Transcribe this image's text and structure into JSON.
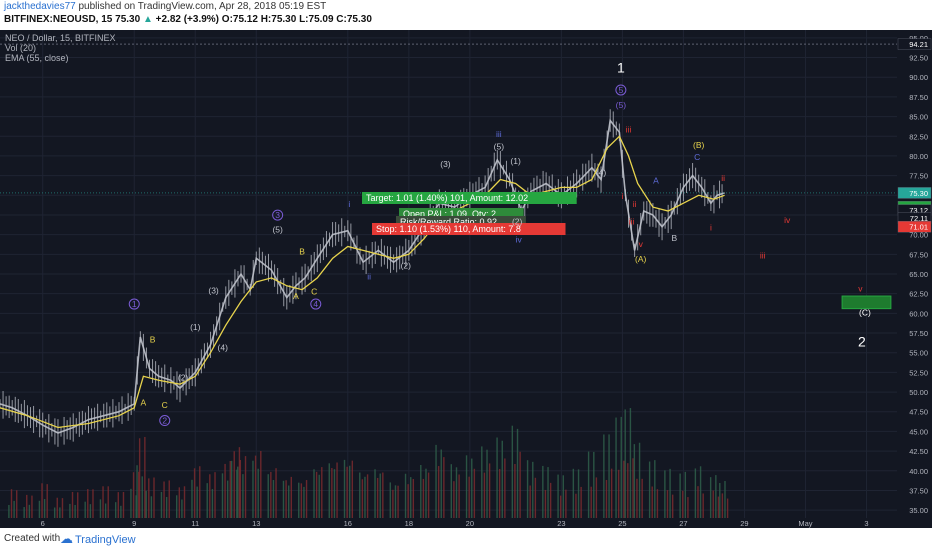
{
  "header": {
    "author": "jackthedavies77",
    "published": "published on TradingView.com, Apr 28, 2018 05:19 EST",
    "symbol": "BITFINEX:NEOUSD, 15",
    "last": "75.30",
    "change": "+2.82 (+3.9%)",
    "ohlc": "O:75.12 H:75.30 L:75.09 C:75.30"
  },
  "legend": {
    "title": "NEO / Dollar, 15, BITFINEX",
    "vol": "Vol (20)",
    "ema": "EMA (55, close)"
  },
  "footer": {
    "created_with": "Created with",
    "brand": "TradingView"
  },
  "colors": {
    "background": "#131722",
    "candles": "#c0c3cc",
    "ema": "#e8d44d",
    "volume": "#7a2a2e",
    "target_green": "#26a641",
    "stop_red": "#e53935",
    "wave_purple": "#7b5cd6",
    "wave_yellow": "#e8d44d",
    "wave_red": "#e53935",
    "wave_blue": "#5e6bd8"
  },
  "chart_data": {
    "type": "line",
    "title": "NEO / Dollar, 15, BITFINEX",
    "x_ticks": [
      "6",
      "9",
      "11",
      "13",
      "16",
      "18",
      "20",
      "23",
      "25",
      "27",
      "29",
      "May",
      "3"
    ],
    "y_ticks": [
      35.0,
      37.5,
      40.0,
      42.5,
      45.0,
      47.5,
      50.0,
      52.5,
      55.0,
      57.5,
      60.0,
      62.5,
      65.0,
      67.5,
      70.0,
      72.5,
      75.0,
      77.5,
      80.0,
      82.5,
      85.0,
      87.5,
      90.0,
      92.5,
      95.0
    ],
    "ylim": [
      34,
      96
    ],
    "xlim": [
      4.6,
      34
    ],
    "price_labels": [
      {
        "value": 94.21,
        "text": "94.21",
        "color": "#ffffff",
        "bg": "#131722",
        "text_color": "#ffffff"
      },
      {
        "value": 75.3,
        "text": "75.30",
        "color": "#26a69a",
        "bg": "#26a69a",
        "text_color": "#ffffff"
      },
      {
        "value": 73.55,
        "text": "10:49",
        "color": "#26a641",
        "bg": "#26a641",
        "text_color": "#ffffff"
      },
      {
        "value": 73.12,
        "text": "73.12",
        "color": "#131722",
        "bg": "#131722",
        "text_color": "#ffffff"
      },
      {
        "value": 72.11,
        "text": "72.11",
        "color": "#131722",
        "bg": "#131722",
        "text_color": "#ffffff"
      },
      {
        "value": 71.01,
        "text": "71.01",
        "color": "#e53935",
        "bg": "#e53935",
        "text_color": "#ffffff"
      }
    ],
    "series": [
      {
        "name": "NEO / Dollar",
        "x": [
          4.6,
          5.0,
          5.5,
          6.0,
          6.5,
          7.0,
          7.5,
          8.0,
          8.5,
          9.0,
          9.2,
          9.5,
          9.8,
          10.2,
          10.5,
          11.0,
          11.5,
          12.0,
          12.5,
          12.8,
          13.0,
          13.5,
          14.0,
          14.3,
          14.6,
          15.0,
          15.5,
          16.0,
          16.5,
          17.0,
          17.5,
          18.0,
          18.5,
          19.0,
          19.5,
          20.0,
          20.5,
          20.9,
          21.3,
          21.7,
          22.0,
          22.5,
          23.0,
          23.5,
          24.0,
          24.3,
          24.6,
          24.9,
          25.1,
          25.4,
          25.7,
          26.0,
          26.3,
          26.6,
          27.0,
          27.3,
          27.6,
          27.9,
          28.1,
          28.35
        ],
        "values": [
          48.5,
          48.0,
          47.0,
          45.8,
          44.8,
          45.5,
          46.5,
          47.0,
          47.5,
          48.5,
          57.0,
          53.0,
          52.0,
          51.5,
          50.5,
          52.5,
          56.0,
          62.0,
          65.0,
          63.0,
          67.0,
          65.5,
          62.0,
          63.5,
          64.5,
          67.0,
          70.0,
          70.5,
          66.5,
          68.0,
          66.5,
          68.0,
          71.0,
          74.0,
          73.5,
          75.0,
          76.0,
          79.5,
          77.0,
          73.0,
          75.5,
          76.5,
          75.0,
          76.5,
          78.5,
          77.0,
          84.5,
          83.0,
          75.0,
          68.0,
          73.0,
          72.5,
          71.0,
          72.5,
          76.0,
          77.5,
          76.0,
          74.0,
          75.0,
          75.3
        ]
      },
      {
        "name": "EMA (55, close)",
        "x": [
          4.6,
          5.5,
          6.5,
          7.5,
          8.5,
          9.0,
          9.3,
          9.8,
          10.5,
          11.0,
          11.5,
          12.0,
          12.5,
          13.0,
          13.5,
          14.0,
          14.5,
          15.0,
          15.5,
          16.0,
          16.5,
          17.0,
          17.5,
          18.0,
          18.5,
          19.0,
          19.5,
          20.0,
          20.5,
          21.0,
          21.5,
          22.0,
          22.5,
          23.0,
          23.5,
          24.0,
          24.5,
          24.9,
          25.2,
          25.5,
          26.0,
          26.5,
          27.0,
          27.5,
          28.0,
          28.35
        ],
        "values": [
          48.0,
          47.0,
          45.5,
          46.0,
          47.0,
          48.0,
          52.0,
          51.5,
          51.0,
          52.0,
          55.0,
          58.5,
          61.5,
          64.0,
          64.5,
          63.5,
          63.0,
          64.5,
          67.0,
          68.5,
          68.0,
          67.5,
          67.0,
          67.5,
          69.5,
          72.0,
          73.0,
          74.0,
          75.0,
          77.0,
          76.5,
          75.0,
          75.5,
          76.0,
          76.0,
          77.0,
          81.0,
          82.5,
          80.0,
          76.5,
          73.5,
          73.0,
          74.0,
          75.0,
          74.5,
          75.0
        ]
      }
    ],
    "volume": {
      "x": [
        5,
        5.5,
        6,
        6.5,
        7,
        7.5,
        8,
        8.5,
        9,
        9.2,
        9.5,
        10,
        10.5,
        11,
        11.5,
        12,
        12.3,
        12.5,
        13,
        13.5,
        14,
        14.5,
        15,
        15.5,
        16,
        16.5,
        17,
        17.5,
        18,
        18.5,
        19,
        19.5,
        20,
        20.5,
        21,
        21.5,
        22,
        22.5,
        23,
        23.5,
        24,
        24.5,
        24.9,
        25.2,
        25.5,
        26,
        26.5,
        27,
        27.5,
        28,
        28.3
      ],
      "values": [
        1,
        0.8,
        1.2,
        0.7,
        0.9,
        1.0,
        1.1,
        0.9,
        1.6,
        2.8,
        1.4,
        1.3,
        1.1,
        1.8,
        1.6,
        2.0,
        2.5,
        2.2,
        2.4,
        1.8,
        1.5,
        1.4,
        1.9,
        2.1,
        2.2,
        1.7,
        1.8,
        1.3,
        1.6,
        1.9,
        2.6,
        1.9,
        2.2,
        2.5,
        2.8,
        3.2,
        2.0,
        1.8,
        1.5,
        1.7,
        2.3,
        2.9,
        3.5,
        3.8,
        2.6,
        2.0,
        1.7,
        1.6,
        1.8,
        1.5,
        1.3
      ]
    },
    "position": {
      "target": "Target: 1.01 (1.40%) 101, Amount: 12.02",
      "open_pl": "Open P&L: 1.09, Qty: 2",
      "risk_reward": "Risk/Reward Ratio: 0.92",
      "stop": "Stop: 1.10 (1.53%) 110, Amount: 7.8"
    },
    "target_box": {
      "x0": 32.2,
      "x1": 33.8,
      "y0": 60.6,
      "y1": 62.2
    },
    "annotations": [
      {
        "x": 24.95,
        "y": 90.6,
        "text": "1",
        "color": "#ffffff",
        "size": 14
      },
      {
        "x": 24.95,
        "y": 88.0,
        "text": "5",
        "color": "#7b5cd6",
        "circle": true
      },
      {
        "x": 24.95,
        "y": 86.1,
        "text": "(5)",
        "color": "#7b5cd6"
      },
      {
        "x": 25.2,
        "y": 83.0,
        "text": "iii",
        "color": "#e53935"
      },
      {
        "x": 24.3,
        "y": 77.5,
        "text": "(4)",
        "color": "#c0c3cc"
      },
      {
        "x": 25.0,
        "y": 74.5,
        "text": "i",
        "color": "#e53935"
      },
      {
        "x": 25.4,
        "y": 73.5,
        "text": "ii",
        "color": "#e53935"
      },
      {
        "x": 25.3,
        "y": 71.3,
        "text": "iii",
        "color": "#e53935"
      },
      {
        "x": 25.6,
        "y": 68.4,
        "text": "v",
        "color": "#e53935"
      },
      {
        "x": 25.6,
        "y": 66.5,
        "text": "(A)",
        "color": "#e8d44d"
      },
      {
        "x": 26.1,
        "y": 76.5,
        "text": "A",
        "color": "#5e6bd8"
      },
      {
        "x": 26.7,
        "y": 69.2,
        "text": "B",
        "color": "#c0c3cc"
      },
      {
        "x": 27.45,
        "y": 79.5,
        "text": "C",
        "color": "#5e6bd8"
      },
      {
        "x": 27.5,
        "y": 81.0,
        "text": "(B)",
        "color": "#e8d44d"
      },
      {
        "x": 28.3,
        "y": 76.8,
        "text": "ii",
        "color": "#e53935"
      },
      {
        "x": 27.9,
        "y": 70.5,
        "text": "i",
        "color": "#e53935"
      },
      {
        "x": 30.4,
        "y": 71.5,
        "text": "iv",
        "color": "#e53935"
      },
      {
        "x": 29.6,
        "y": 67.0,
        "text": "iii",
        "color": "#e53935"
      },
      {
        "x": 32.8,
        "y": 62.8,
        "text": "v",
        "color": "#e53935"
      },
      {
        "x": 32.95,
        "y": 59.7,
        "text": "(C)",
        "color": "#ffffff"
      },
      {
        "x": 32.85,
        "y": 55.8,
        "text": "2",
        "color": "#ffffff",
        "size": 14
      },
      {
        "x": 9.0,
        "y": 60.8,
        "text": "1",
        "color": "#7b5cd6",
        "circle": true
      },
      {
        "x": 9.6,
        "y": 56.3,
        "text": "B",
        "color": "#e8d44d"
      },
      {
        "x": 9.3,
        "y": 48.3,
        "text": "A",
        "color": "#e8d44d"
      },
      {
        "x": 10.0,
        "y": 48.0,
        "text": "C",
        "color": "#e8d44d"
      },
      {
        "x": 10.0,
        "y": 46.0,
        "text": "2",
        "color": "#7b5cd6",
        "circle": true
      },
      {
        "x": 11.0,
        "y": 57.9,
        "text": "(1)",
        "color": "#c0c3cc"
      },
      {
        "x": 10.6,
        "y": 51.5,
        "text": "(2)",
        "color": "#c0c3cc"
      },
      {
        "x": 11.6,
        "y": 62.5,
        "text": "(3)",
        "color": "#c0c3cc"
      },
      {
        "x": 11.9,
        "y": 55.3,
        "text": "(4)",
        "color": "#c0c3cc"
      },
      {
        "x": 13.7,
        "y": 72.1,
        "text": "3",
        "color": "#7b5cd6",
        "circle": true
      },
      {
        "x": 13.7,
        "y": 70.3,
        "text": "(5)",
        "color": "#c0c3cc"
      },
      {
        "x": 14.5,
        "y": 67.5,
        "text": "B",
        "color": "#e8d44d"
      },
      {
        "x": 14.3,
        "y": 61.8,
        "text": "A",
        "color": "#e8d44d"
      },
      {
        "x": 14.9,
        "y": 62.4,
        "text": "C",
        "color": "#e8d44d"
      },
      {
        "x": 14.95,
        "y": 60.8,
        "text": "4",
        "color": "#7b5cd6",
        "circle": true
      },
      {
        "x": 16.05,
        "y": 73.5,
        "text": "i",
        "color": "#5e6bd8"
      },
      {
        "x": 16.7,
        "y": 64.3,
        "text": "ii",
        "color": "#5e6bd8"
      },
      {
        "x": 17.9,
        "y": 65.7,
        "text": "(2)",
        "color": "#c0c3cc"
      },
      {
        "x": 19.2,
        "y": 78.6,
        "text": "(3)",
        "color": "#c0c3cc"
      },
      {
        "x": 20.95,
        "y": 80.8,
        "text": "(5)",
        "color": "#c0c3cc"
      },
      {
        "x": 21.5,
        "y": 79.0,
        "text": "(1)",
        "color": "#c0c3cc"
      },
      {
        "x": 21.55,
        "y": 71.3,
        "text": "(2)",
        "color": "#c0c3cc"
      },
      {
        "x": 20.95,
        "y": 82.4,
        "text": "iii",
        "color": "#5e6bd8"
      },
      {
        "x": 21.6,
        "y": 69.0,
        "text": "iv",
        "color": "#5e6bd8"
      }
    ]
  }
}
